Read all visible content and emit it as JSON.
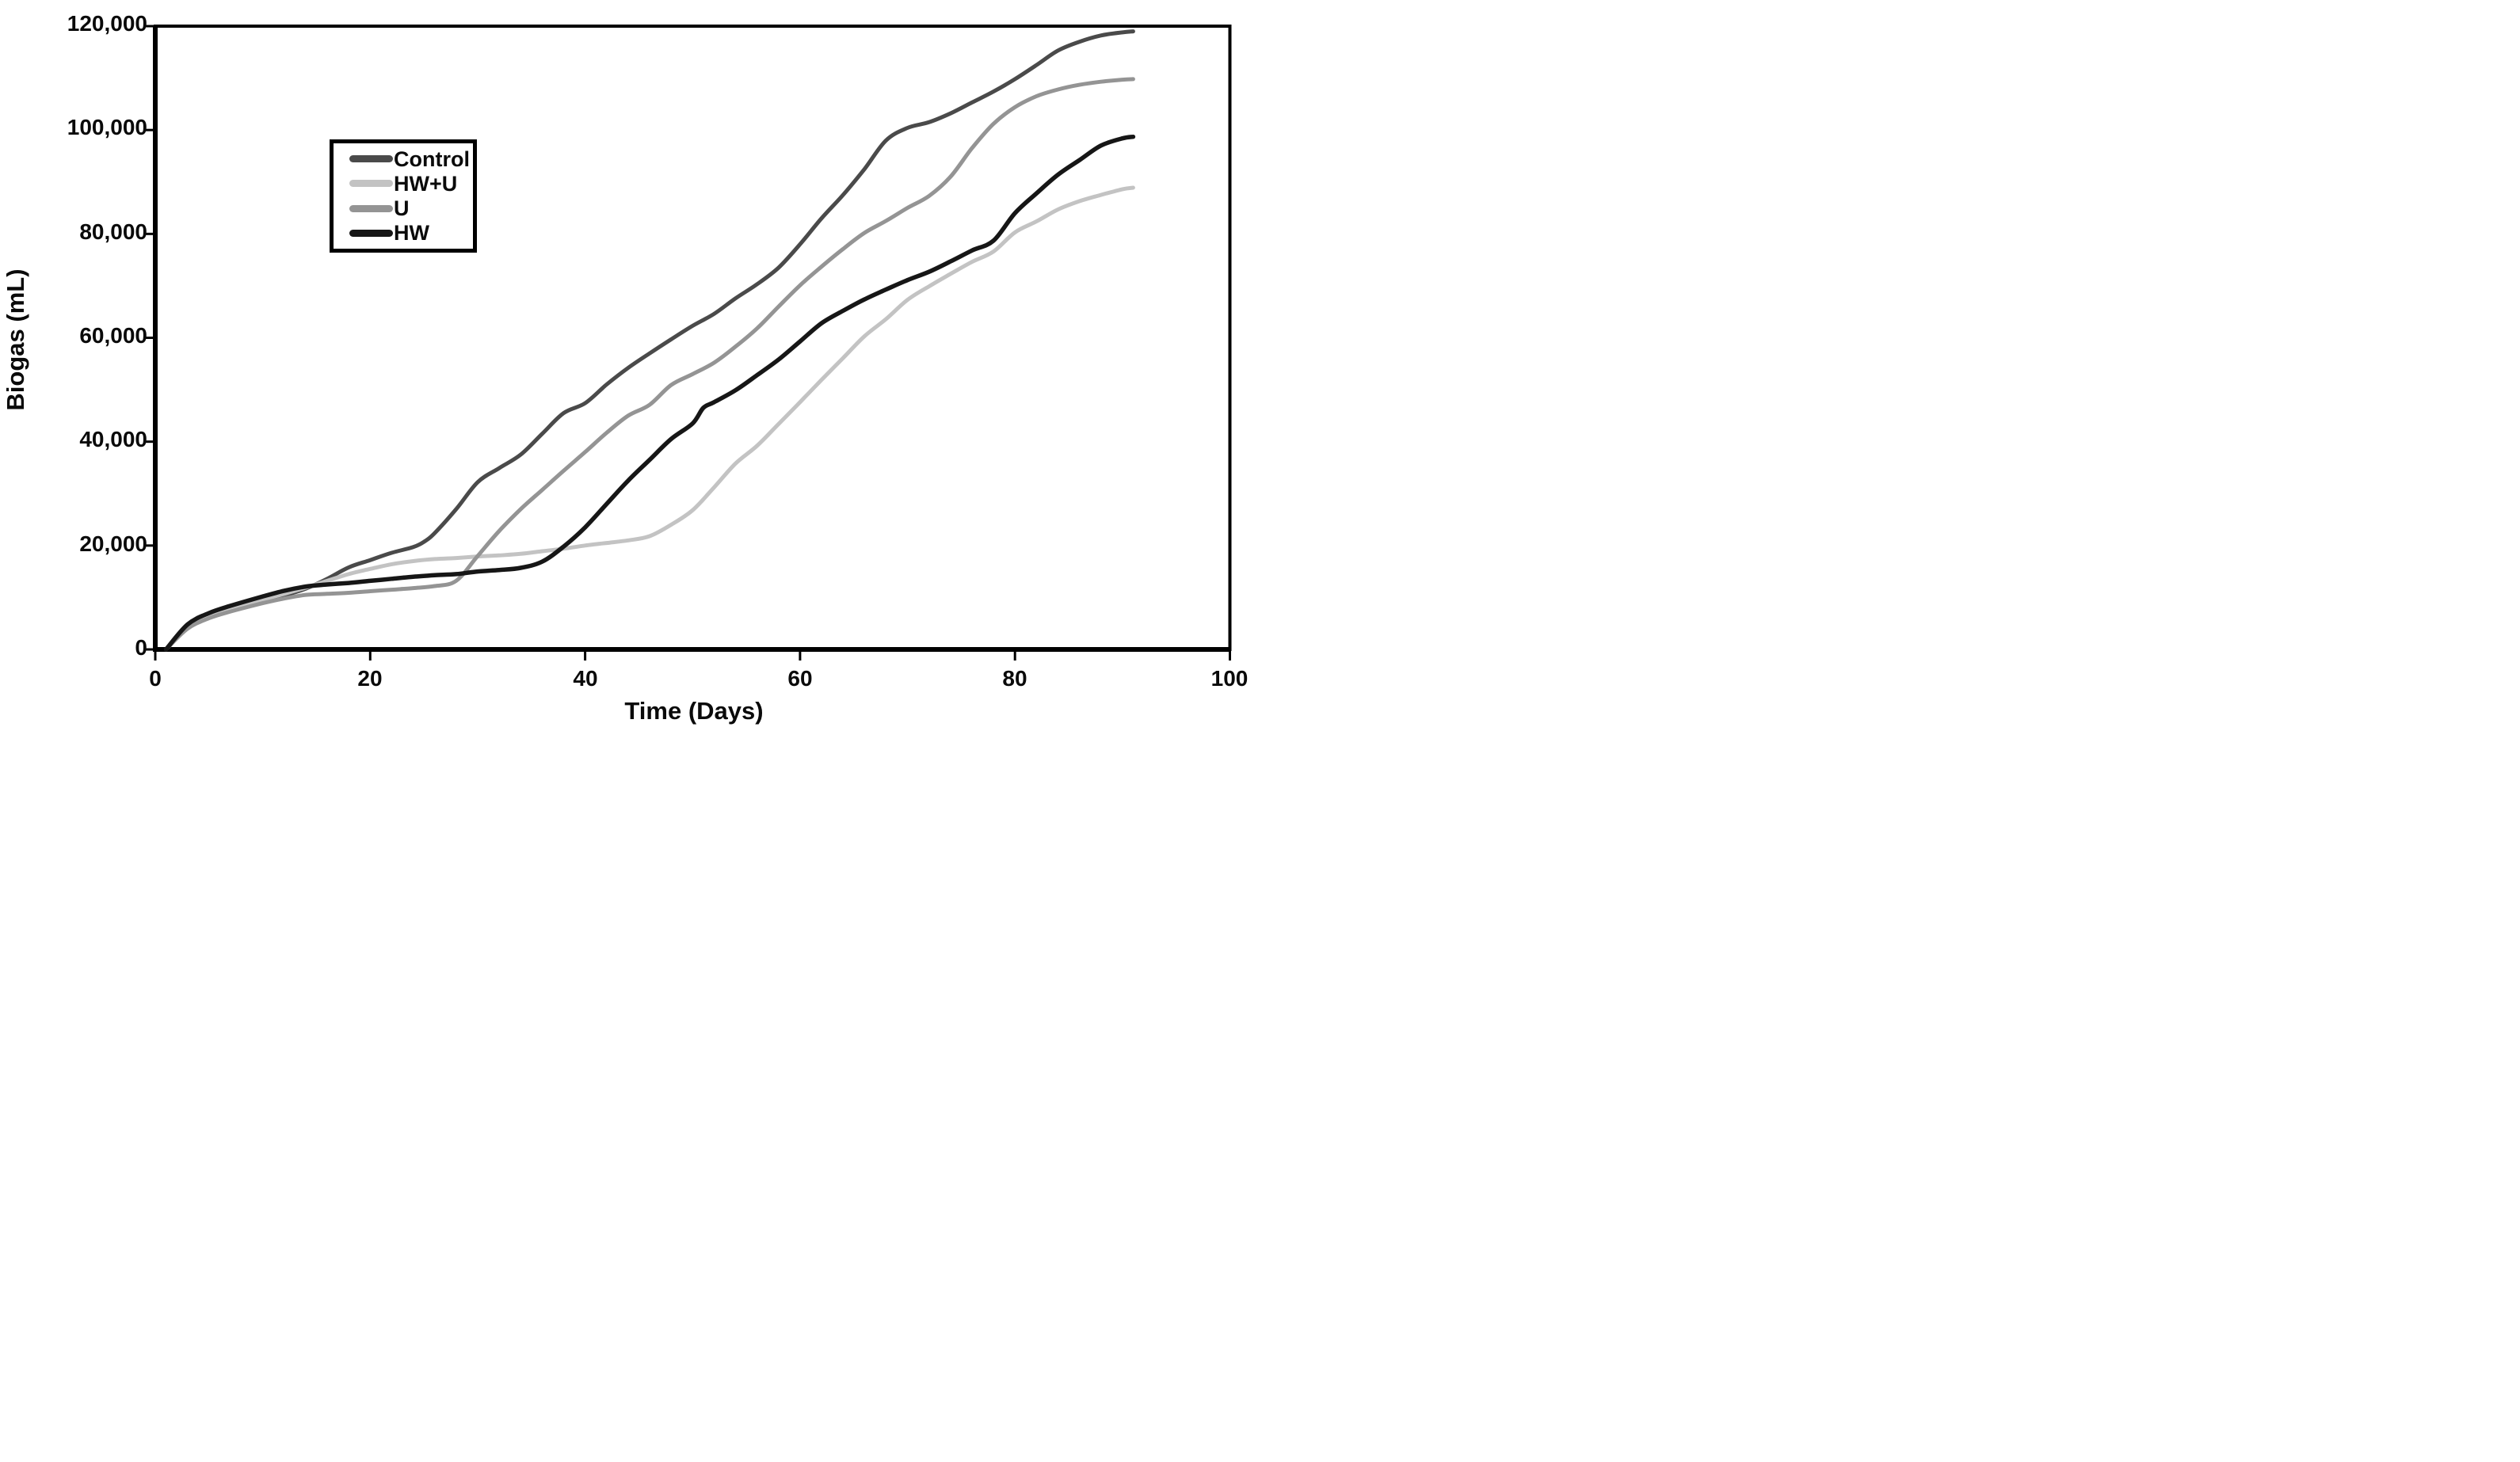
{
  "figure": {
    "background": "#ffffff"
  },
  "chart_data": {
    "type": "line",
    "title": "",
    "xlabel": "Time (Days)",
    "ylabel": "Biogas (mL)",
    "xlim": [
      0,
      100
    ],
    "ylim": [
      0,
      120000
    ],
    "grid": false,
    "frame": true,
    "legend_position": "inside upper-left",
    "x_ticks": [
      0,
      20,
      40,
      60,
      80,
      100
    ],
    "x_tick_labels": [
      "0",
      "20",
      "40",
      "60",
      "80",
      "100"
    ],
    "y_ticks": [
      0,
      20000,
      40000,
      60000,
      80000,
      100000,
      120000
    ],
    "y_tick_labels": [
      "0",
      "20,000",
      "40,000",
      "60,000",
      "80,000",
      "100,000",
      "120,000"
    ],
    "axis_color": "#000000",
    "series": [
      {
        "name": "Control",
        "color": "#4a4a4a",
        "stroke_width": 5,
        "points": [
          [
            1,
            0
          ],
          [
            3,
            4200
          ],
          [
            5,
            6200
          ],
          [
            7,
            7700
          ],
          [
            10,
            9300
          ],
          [
            12,
            10400
          ],
          [
            14,
            11700
          ],
          [
            16,
            13600
          ],
          [
            18,
            15800
          ],
          [
            20,
            17200
          ],
          [
            22,
            18600
          ],
          [
            24,
            19700
          ],
          [
            25,
            20700
          ],
          [
            26,
            22400
          ],
          [
            28,
            27000
          ],
          [
            30,
            32200
          ],
          [
            32,
            34900
          ],
          [
            34,
            37500
          ],
          [
            36,
            41500
          ],
          [
            38,
            45500
          ],
          [
            40,
            47400
          ],
          [
            42,
            51000
          ],
          [
            44,
            54200
          ],
          [
            46,
            57000
          ],
          [
            48,
            59700
          ],
          [
            50,
            62300
          ],
          [
            52,
            64600
          ],
          [
            54,
            67600
          ],
          [
            56,
            70300
          ],
          [
            58,
            73500
          ],
          [
            60,
            78000
          ],
          [
            62,
            83000
          ],
          [
            64,
            87500
          ],
          [
            66,
            92500
          ],
          [
            68,
            98000
          ],
          [
            70,
            100400
          ],
          [
            72,
            101500
          ],
          [
            74,
            103200
          ],
          [
            76,
            105300
          ],
          [
            78,
            107400
          ],
          [
            80,
            109800
          ],
          [
            82,
            112500
          ],
          [
            84,
            115300
          ],
          [
            86,
            117000
          ],
          [
            88,
            118200
          ],
          [
            90,
            118800
          ],
          [
            91,
            119000
          ]
        ]
      },
      {
        "name": "HW+U",
        "color": "#c3c3c3",
        "stroke_width": 5,
        "points": [
          [
            1,
            0
          ],
          [
            3,
            4300
          ],
          [
            5,
            6400
          ],
          [
            7,
            7800
          ],
          [
            10,
            9600
          ],
          [
            12,
            10700
          ],
          [
            14,
            11900
          ],
          [
            16,
            13200
          ],
          [
            18,
            14500
          ],
          [
            20,
            15500
          ],
          [
            22,
            16400
          ],
          [
            24,
            17000
          ],
          [
            26,
            17400
          ],
          [
            28,
            17600
          ],
          [
            30,
            17900
          ],
          [
            32,
            18100
          ],
          [
            34,
            18400
          ],
          [
            36,
            18900
          ],
          [
            38,
            19400
          ],
          [
            40,
            20000
          ],
          [
            42,
            20500
          ],
          [
            44,
            21000
          ],
          [
            46,
            21800
          ],
          [
            48,
            24000
          ],
          [
            50,
            26800
          ],
          [
            52,
            31200
          ],
          [
            54,
            35800
          ],
          [
            56,
            39200
          ],
          [
            58,
            43400
          ],
          [
            60,
            47600
          ],
          [
            62,
            51900
          ],
          [
            64,
            56100
          ],
          [
            66,
            60300
          ],
          [
            68,
            63600
          ],
          [
            70,
            67300
          ],
          [
            72,
            69900
          ],
          [
            74,
            72300
          ],
          [
            76,
            74600
          ],
          [
            78,
            76600
          ],
          [
            80,
            80300
          ],
          [
            82,
            82400
          ],
          [
            84,
            84700
          ],
          [
            86,
            86300
          ],
          [
            88,
            87500
          ],
          [
            90,
            88600
          ],
          [
            91,
            88900
          ]
        ]
      },
      {
        "name": "U",
        "color": "#949494",
        "stroke_width": 5,
        "points": [
          [
            1,
            0
          ],
          [
            3,
            4000
          ],
          [
            5,
            6000
          ],
          [
            7,
            7300
          ],
          [
            10,
            8900
          ],
          [
            12,
            9800
          ],
          [
            14,
            10500
          ],
          [
            16,
            10700
          ],
          [
            18,
            10900
          ],
          [
            20,
            11200
          ],
          [
            22,
            11500
          ],
          [
            24,
            11800
          ],
          [
            26,
            12200
          ],
          [
            28,
            13200
          ],
          [
            30,
            18000
          ],
          [
            32,
            22800
          ],
          [
            34,
            27000
          ],
          [
            36,
            30700
          ],
          [
            38,
            34400
          ],
          [
            40,
            38000
          ],
          [
            42,
            41700
          ],
          [
            44,
            45000
          ],
          [
            46,
            47100
          ],
          [
            48,
            50900
          ],
          [
            50,
            53000
          ],
          [
            52,
            55200
          ],
          [
            54,
            58300
          ],
          [
            56,
            61800
          ],
          [
            58,
            66000
          ],
          [
            60,
            70100
          ],
          [
            62,
            73700
          ],
          [
            64,
            77100
          ],
          [
            66,
            80200
          ],
          [
            68,
            82500
          ],
          [
            70,
            85000
          ],
          [
            72,
            87300
          ],
          [
            74,
            91000
          ],
          [
            76,
            96500
          ],
          [
            78,
            101200
          ],
          [
            80,
            104400
          ],
          [
            82,
            106500
          ],
          [
            84,
            107800
          ],
          [
            86,
            108700
          ],
          [
            88,
            109300
          ],
          [
            90,
            109700
          ],
          [
            91,
            109800
          ]
        ]
      },
      {
        "name": "HW",
        "color": "#161616",
        "stroke_width": 5.5,
        "points": [
          [
            1,
            0
          ],
          [
            3,
            4800
          ],
          [
            5,
            7000
          ],
          [
            7,
            8400
          ],
          [
            10,
            10200
          ],
          [
            12,
            11300
          ],
          [
            14,
            12100
          ],
          [
            16,
            12500
          ],
          [
            18,
            12800
          ],
          [
            20,
            13200
          ],
          [
            22,
            13600
          ],
          [
            24,
            14000
          ],
          [
            26,
            14300
          ],
          [
            28,
            14500
          ],
          [
            30,
            15000
          ],
          [
            32,
            15300
          ],
          [
            34,
            15700
          ],
          [
            36,
            16900
          ],
          [
            38,
            19800
          ],
          [
            40,
            23500
          ],
          [
            42,
            28000
          ],
          [
            44,
            32500
          ],
          [
            46,
            36500
          ],
          [
            48,
            40500
          ],
          [
            50,
            43500
          ],
          [
            51,
            46500
          ],
          [
            52,
            47600
          ],
          [
            54,
            49900
          ],
          [
            56,
            52800
          ],
          [
            58,
            55800
          ],
          [
            60,
            59300
          ],
          [
            62,
            62800
          ],
          [
            64,
            65200
          ],
          [
            66,
            67400
          ],
          [
            68,
            69300
          ],
          [
            70,
            71100
          ],
          [
            72,
            72700
          ],
          [
            74,
            74700
          ],
          [
            76,
            76800
          ],
          [
            78,
            78700
          ],
          [
            80,
            84000
          ],
          [
            82,
            87800
          ],
          [
            84,
            91400
          ],
          [
            86,
            94200
          ],
          [
            88,
            97000
          ],
          [
            90,
            98400
          ],
          [
            91,
            98700
          ]
        ]
      }
    ]
  },
  "legend": {
    "items": [
      {
        "label": "Control",
        "swatch": "line-swatch-icon"
      },
      {
        "label": "HW+U",
        "swatch": "line-swatch-icon"
      },
      {
        "label": "U",
        "swatch": "line-swatch-icon"
      },
      {
        "label": "HW",
        "swatch": "line-swatch-icon"
      }
    ]
  }
}
